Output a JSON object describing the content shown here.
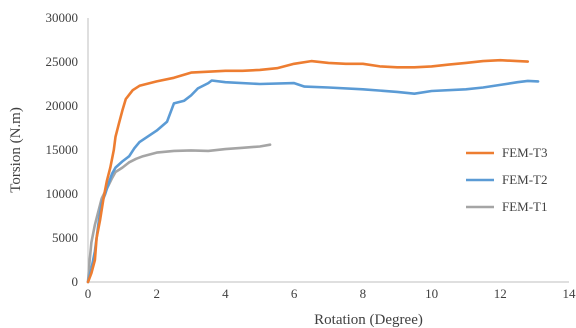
{
  "chart_data": {
    "type": "line",
    "xlabel": "Rotation (Degree)",
    "ylabel": "Torsion (N.m)",
    "xlim": [
      0,
      14
    ],
    "ylim": [
      0,
      30000
    ],
    "xticks": [
      0,
      2,
      4,
      6,
      8,
      10,
      12,
      14
    ],
    "yticks": [
      0,
      5000,
      10000,
      15000,
      20000,
      25000,
      30000
    ],
    "grid": false,
    "legend_position": "right",
    "series": [
      {
        "name": "FEM-T3",
        "color": "#ED7D31",
        "points": [
          [
            0,
            0
          ],
          [
            0.1,
            1000
          ],
          [
            0.2,
            2500
          ],
          [
            0.25,
            5000
          ],
          [
            0.35,
            7000
          ],
          [
            0.45,
            9500
          ],
          [
            0.55,
            11500
          ],
          [
            0.65,
            13000
          ],
          [
            0.75,
            15000
          ],
          [
            0.8,
            16500
          ],
          [
            0.9,
            18000
          ],
          [
            1.0,
            19500
          ],
          [
            1.1,
            20800
          ],
          [
            1.3,
            21800
          ],
          [
            1.5,
            22300
          ],
          [
            2.0,
            22800
          ],
          [
            2.5,
            23200
          ],
          [
            3.0,
            23800
          ],
          [
            3.5,
            23900
          ],
          [
            4.0,
            24000
          ],
          [
            4.5,
            24000
          ],
          [
            5.0,
            24100
          ],
          [
            5.5,
            24300
          ],
          [
            6.0,
            24800
          ],
          [
            6.5,
            25100
          ],
          [
            7.0,
            24900
          ],
          [
            7.5,
            24800
          ],
          [
            8.0,
            24800
          ],
          [
            8.5,
            24500
          ],
          [
            9.0,
            24400
          ],
          [
            9.5,
            24400
          ],
          [
            10.0,
            24500
          ],
          [
            10.5,
            24700
          ],
          [
            11.0,
            24900
          ],
          [
            11.5,
            25100
          ],
          [
            12.0,
            25200
          ],
          [
            12.5,
            25100
          ],
          [
            12.8,
            25050
          ]
        ]
      },
      {
        "name": "FEM-T2",
        "color": "#5B9BD5",
        "points": [
          [
            0,
            0
          ],
          [
            0.1,
            1500
          ],
          [
            0.2,
            3500
          ],
          [
            0.3,
            6500
          ],
          [
            0.4,
            9000
          ],
          [
            0.5,
            10000
          ],
          [
            0.6,
            11200
          ],
          [
            0.7,
            12300
          ],
          [
            0.8,
            13000
          ],
          [
            1.0,
            13700
          ],
          [
            1.2,
            14300
          ],
          [
            1.35,
            15200
          ],
          [
            1.5,
            15900
          ],
          [
            2.0,
            17200
          ],
          [
            2.3,
            18200
          ],
          [
            2.5,
            20300
          ],
          [
            2.8,
            20600
          ],
          [
            3.0,
            21200
          ],
          [
            3.2,
            22000
          ],
          [
            3.5,
            22600
          ],
          [
            3.6,
            22900
          ],
          [
            4.0,
            22700
          ],
          [
            5.0,
            22500
          ],
          [
            6.0,
            22600
          ],
          [
            6.3,
            22200
          ],
          [
            7.0,
            22100
          ],
          [
            8.0,
            21900
          ],
          [
            9.0,
            21600
          ],
          [
            9.5,
            21400
          ],
          [
            10.0,
            21700
          ],
          [
            11.0,
            21900
          ],
          [
            11.5,
            22100
          ],
          [
            12.0,
            22400
          ],
          [
            12.5,
            22700
          ],
          [
            12.8,
            22850
          ],
          [
            13.1,
            22800
          ]
        ]
      },
      {
        "name": "FEM-T1",
        "color": "#A5A5A5",
        "points": [
          [
            0,
            0
          ],
          [
            0.05,
            2500
          ],
          [
            0.1,
            4500
          ],
          [
            0.2,
            6500
          ],
          [
            0.3,
            8000
          ],
          [
            0.4,
            9500
          ],
          [
            0.5,
            10300
          ],
          [
            0.6,
            11000
          ],
          [
            0.7,
            11800
          ],
          [
            0.8,
            12500
          ],
          [
            1.0,
            13000
          ],
          [
            1.2,
            13600
          ],
          [
            1.4,
            14000
          ],
          [
            1.6,
            14300
          ],
          [
            2.0,
            14700
          ],
          [
            2.5,
            14900
          ],
          [
            3.0,
            14950
          ],
          [
            3.5,
            14900
          ],
          [
            4.0,
            15100
          ],
          [
            4.5,
            15250
          ],
          [
            5.0,
            15400
          ],
          [
            5.3,
            15600
          ]
        ]
      }
    ]
  }
}
